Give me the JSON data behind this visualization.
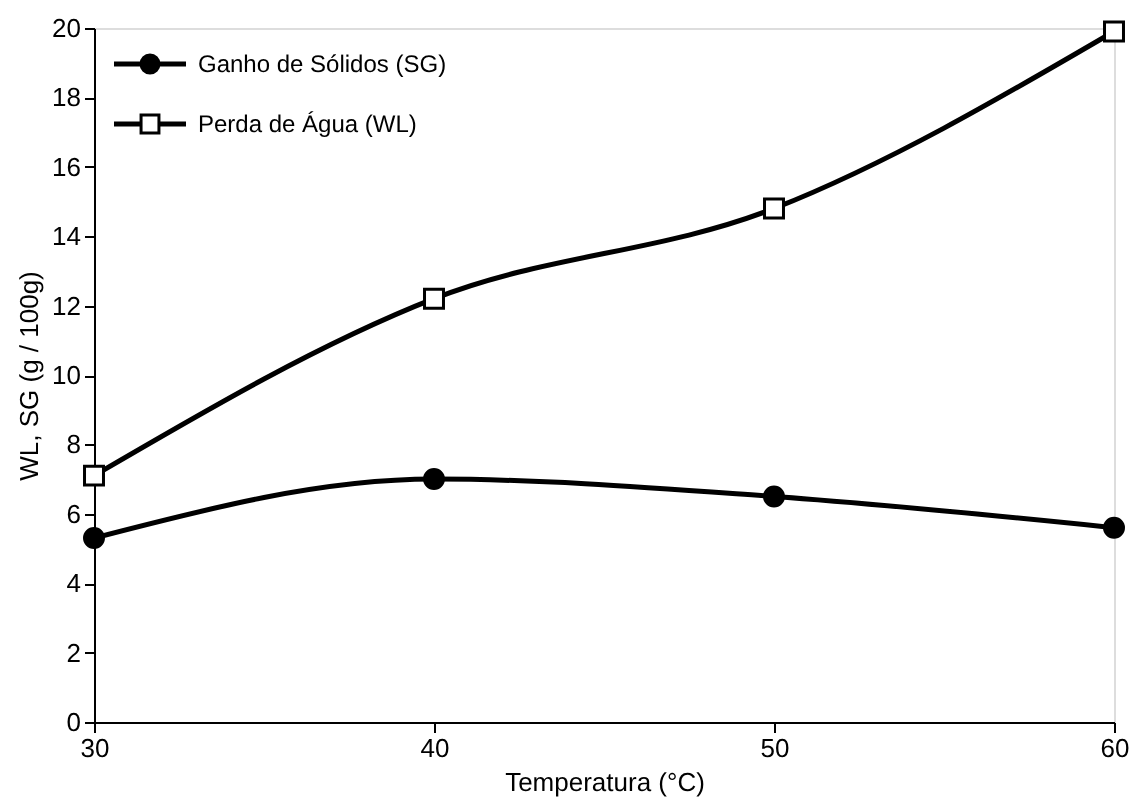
{
  "chart_data": {
    "type": "line",
    "xlabel": "Temperatura (°C)",
    "ylabel": "WL, SG (g / 100g)",
    "x": [
      30,
      40,
      50,
      60
    ],
    "series": [
      {
        "name": "Ganho de Sólidos (SG)",
        "color": "#000000",
        "marker": "circle",
        "values": [
          5.3,
          7.0,
          6.5,
          5.6
        ]
      },
      {
        "name": "Perda de Água (WL)",
        "color": "#000000",
        "marker": "square",
        "values": [
          7.1,
          12.2,
          14.8,
          19.9
        ]
      }
    ],
    "xlim": [
      30,
      60
    ],
    "xticks": [
      30,
      40,
      50,
      60
    ],
    "ylim": [
      0,
      20
    ],
    "yticks": [
      0,
      2,
      4,
      6,
      8,
      10,
      12,
      14,
      16,
      18,
      20
    ],
    "grid": false,
    "legend": "top left",
    "line_style": "solid"
  }
}
